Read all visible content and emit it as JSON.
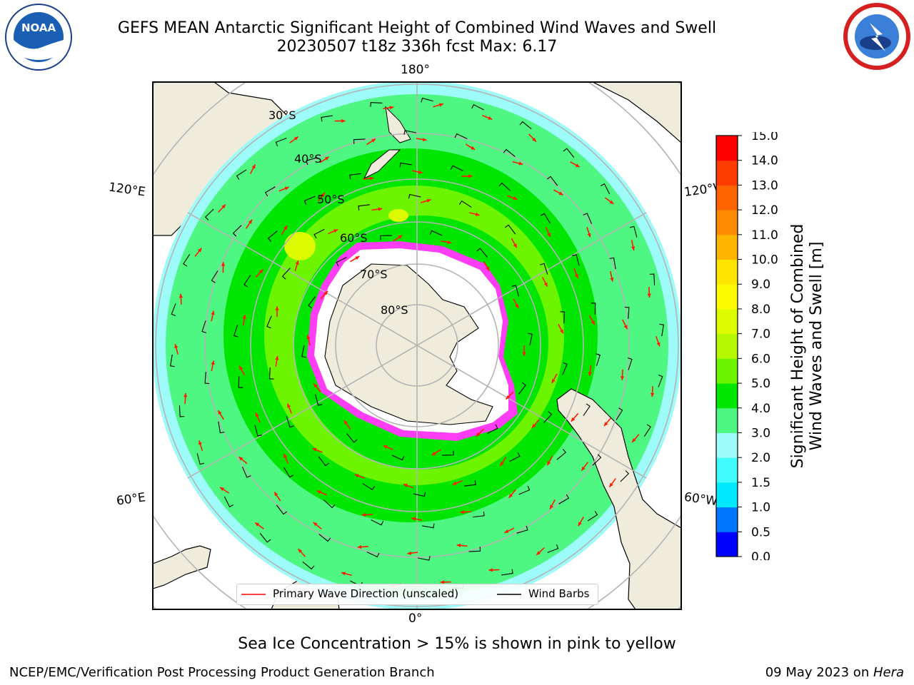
{
  "header": {
    "title_line1": "GEFS MEAN Antarctic Significant Height of Combined Wind Waves and Swell",
    "title_line2": "20230507 t18z 336h fcst   Max: 6.17"
  },
  "logos": {
    "left": {
      "name": "NOAA",
      "ring_text": "NATIONAL OCEANIC AND ATMOSPHERIC ADMINISTRATION · U.S. DEPARTMENT OF COMMERCE"
    },
    "right": {
      "name": "NATIONAL WEATHER SERVICE"
    }
  },
  "map": {
    "projection": "south-polar-stereographic",
    "lon_labels": {
      "top": "180°",
      "bottom": "0°",
      "left_upper": "120°E",
      "left_lower": "60°E",
      "right_upper": "120°W",
      "right_lower": "60°W"
    },
    "lat_labels": [
      "30°S",
      "40°S",
      "50°S",
      "60°S",
      "70°S",
      "80°S"
    ],
    "colors": {
      "land": "#efecdc",
      "ice": "#ffffff",
      "ocean_low": "#9dfbf9",
      "ocean_mid": "#4ef782",
      "ocean_high": "#00e600",
      "ocean_higher": "#6cf400",
      "grid": "#b4b4b4",
      "wave_arrow": "#ff1a00",
      "wind_barb": "#000000",
      "sea_ice": "#ff3df5"
    }
  },
  "legend": {
    "wave_label": "Primary Wave Direction (unscaled)",
    "wind_label": "Wind Barbs"
  },
  "colorbar": {
    "label_line1": "Significant Height of Combined",
    "label_line2": "Wind Waves and Swell [m]",
    "ticks": [
      "15.0",
      "14.0",
      "13.0",
      "12.0",
      "11.0",
      "10.0",
      "9.0",
      "8.0",
      "7.0",
      "6.0",
      "5.0",
      "4.0",
      "3.0",
      "2.0",
      "1.5",
      "1.0",
      "0.5",
      "0.0"
    ],
    "colors": [
      "#0000ff",
      "#0077ff",
      "#00e8ff",
      "#40fcfc",
      "#9dfbf9",
      "#4ef782",
      "#00e600",
      "#6cf400",
      "#b4f700",
      "#dcfa00",
      "#fcfc00",
      "#ffe600",
      "#ffb400",
      "#ff8c00",
      "#ff6400",
      "#ff3c00",
      "#ff0000"
    ]
  },
  "note": "Sea Ice Concentration > 15% is shown in pink to yellow",
  "footer": {
    "left": "NCEP/EMC/Verification Post Processing Product Generation Branch",
    "date": "09 May 2023 on ",
    "machine": "Hera"
  }
}
